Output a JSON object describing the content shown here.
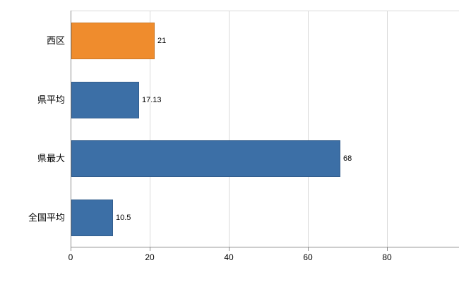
{
  "chart_data": {
    "type": "bar",
    "orientation": "horizontal",
    "title": "",
    "xlabel": "",
    "ylabel": "",
    "categories": [
      "西区",
      "県平均",
      "県最大",
      "全国平均"
    ],
    "values": [
      21,
      17.13,
      68,
      10.5
    ],
    "value_labels": [
      "21",
      "17.13",
      "68",
      "10.5"
    ],
    "bar_colors": [
      "#ef8c2d",
      "#3c6fa6",
      "#3c6fa6",
      "#3c6fa6"
    ],
    "highlight_category": "西区",
    "x_ticks": [
      0,
      20,
      40,
      60,
      80
    ],
    "x_tick_labels": [
      "0",
      "20",
      "40",
      "60",
      "80"
    ],
    "xlim": [
      0,
      80
    ],
    "grid": "vertical",
    "legend": "none"
  },
  "colors": {
    "bar_blue": "#3c6fa6",
    "bar_orange": "#ef8c2d",
    "gridline": "#d9d9d9",
    "axis": "#8c8c8c",
    "background": "#ffffff",
    "text": "#000000"
  }
}
